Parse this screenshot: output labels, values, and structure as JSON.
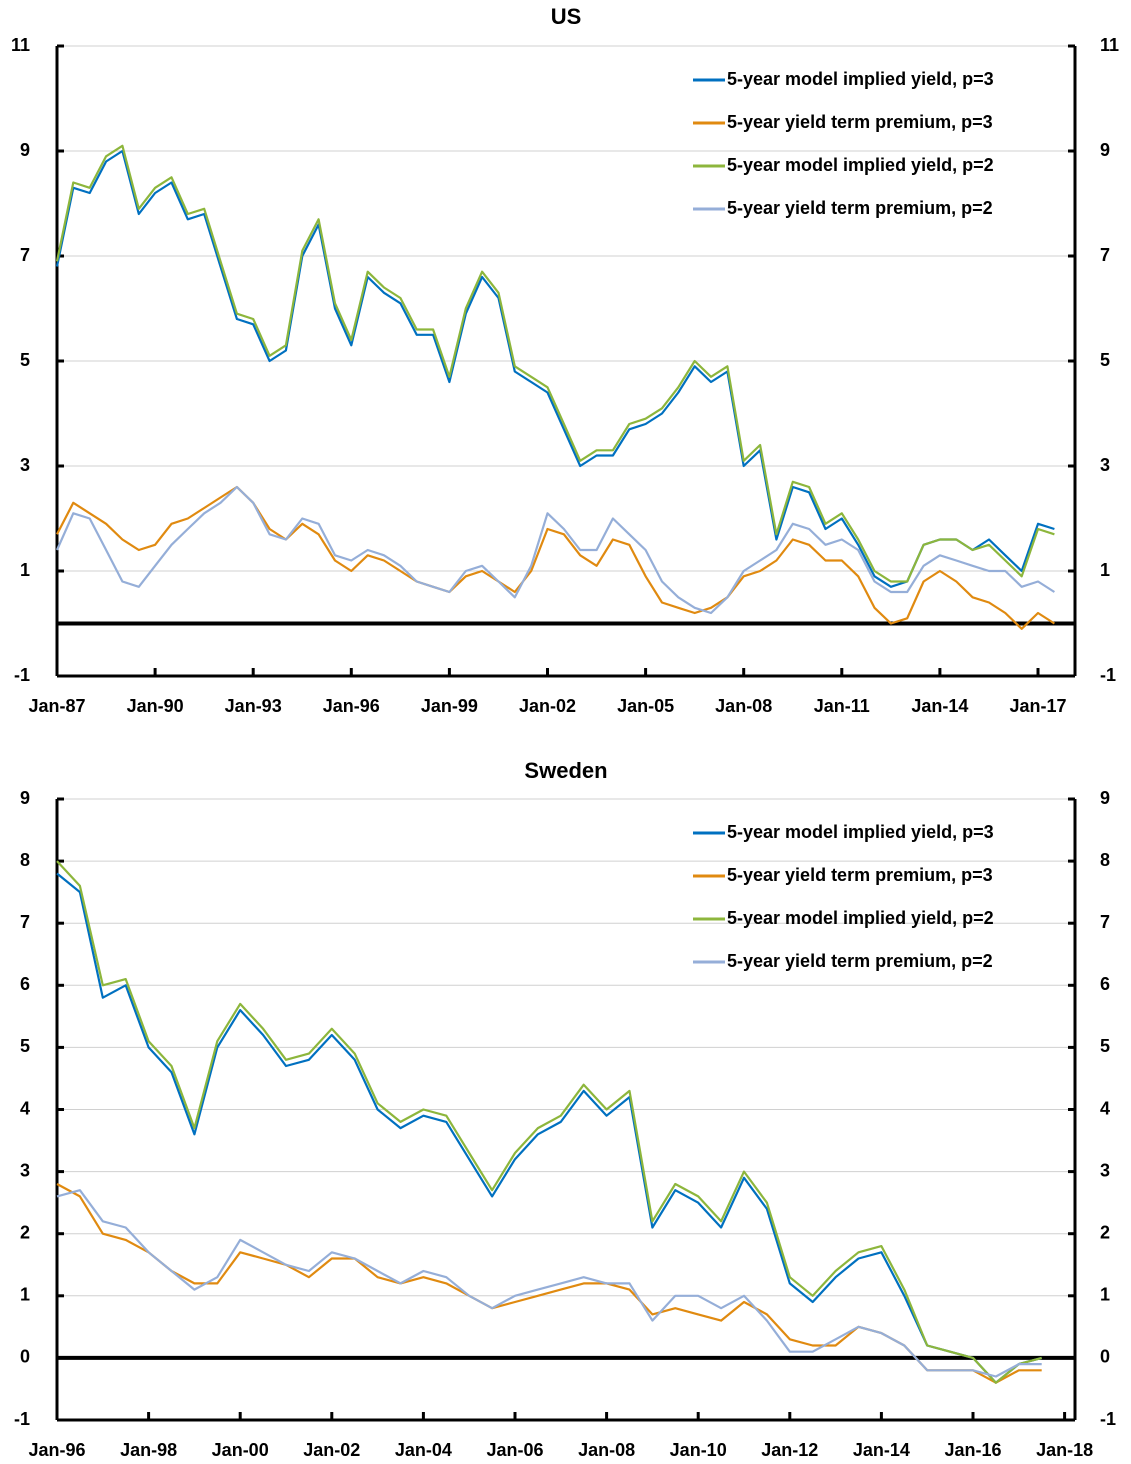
{
  "chart_data": [
    {
      "type": "line",
      "title": "US",
      "x": [
        "Jan-87",
        "Jul-87",
        "Jan-88",
        "Jul-88",
        "Jan-89",
        "Jul-89",
        "Jan-90",
        "Jul-90",
        "Jan-91",
        "Jul-91",
        "Jan-92",
        "Jul-92",
        "Jan-93",
        "Jul-93",
        "Jan-94",
        "Jul-94",
        "Jan-95",
        "Jul-95",
        "Jan-96",
        "Jul-96",
        "Jan-97",
        "Jul-97",
        "Jan-98",
        "Jul-98",
        "Jan-99",
        "Jul-99",
        "Jan-00",
        "Jul-00",
        "Jan-01",
        "Jul-01",
        "Jan-02",
        "Jul-02",
        "Jan-03",
        "Jul-03",
        "Jan-04",
        "Jul-04",
        "Jan-05",
        "Jul-05",
        "Jan-06",
        "Jul-06",
        "Jan-07",
        "Jul-07",
        "Jan-08",
        "Jul-08",
        "Jan-09",
        "Jul-09",
        "Jan-10",
        "Jul-10",
        "Jan-11",
        "Jul-11",
        "Jan-12",
        "Jul-12",
        "Jan-13",
        "Jul-13",
        "Jan-14",
        "Jul-14",
        "Jan-15",
        "Jul-15",
        "Jan-16",
        "Jul-16",
        "Jan-17",
        "Jul-17"
      ],
      "series": [
        {
          "name": "5-year model implied yield, p=3",
          "color": "#0070c0",
          "values": [
            6.8,
            8.3,
            8.2,
            8.8,
            9.0,
            7.8,
            8.2,
            8.4,
            7.7,
            7.8,
            6.8,
            5.8,
            5.7,
            5.0,
            5.2,
            7.0,
            7.6,
            6.0,
            5.3,
            6.6,
            6.3,
            6.1,
            5.5,
            5.5,
            4.6,
            5.9,
            6.6,
            6.2,
            4.8,
            4.6,
            4.4,
            3.7,
            3.0,
            3.2,
            3.2,
            3.7,
            3.8,
            4.0,
            4.4,
            4.9,
            4.6,
            4.8,
            3.0,
            3.3,
            1.6,
            2.6,
            2.5,
            1.8,
            2.0,
            1.5,
            0.9,
            0.7,
            0.8,
            1.5,
            1.6,
            1.6,
            1.4,
            1.6,
            1.3,
            1.0,
            1.9,
            1.8
          ]
        },
        {
          "name": "5-year yield term premium, p=3",
          "color": "#e08a10",
          "values": [
            1.7,
            2.3,
            2.1,
            1.9,
            1.6,
            1.4,
            1.5,
            1.9,
            2.0,
            2.2,
            2.4,
            2.6,
            2.3,
            1.8,
            1.6,
            1.9,
            1.7,
            1.2,
            1.0,
            1.3,
            1.2,
            1.0,
            0.8,
            0.7,
            0.6,
            0.9,
            1.0,
            0.8,
            0.6,
            1.0,
            1.8,
            1.7,
            1.3,
            1.1,
            1.6,
            1.5,
            0.9,
            0.4,
            0.3,
            0.2,
            0.3,
            0.5,
            0.9,
            1.0,
            1.2,
            1.6,
            1.5,
            1.2,
            1.2,
            0.9,
            0.3,
            0.0,
            0.1,
            0.8,
            1.0,
            0.8,
            0.5,
            0.4,
            0.2,
            -0.1,
            0.2,
            0.0
          ]
        },
        {
          "name": "5-year model implied yield, p=2",
          "color": "#8db63c",
          "values": [
            6.9,
            8.4,
            8.3,
            8.9,
            9.1,
            7.9,
            8.3,
            8.5,
            7.8,
            7.9,
            6.9,
            5.9,
            5.8,
            5.1,
            5.3,
            7.1,
            7.7,
            6.1,
            5.4,
            6.7,
            6.4,
            6.2,
            5.6,
            5.6,
            4.7,
            6.0,
            6.7,
            6.3,
            4.9,
            4.7,
            4.5,
            3.8,
            3.1,
            3.3,
            3.3,
            3.8,
            3.9,
            4.1,
            4.5,
            5.0,
            4.7,
            4.9,
            3.1,
            3.4,
            1.7,
            2.7,
            2.6,
            1.9,
            2.1,
            1.6,
            1.0,
            0.8,
            0.8,
            1.5,
            1.6,
            1.6,
            1.4,
            1.5,
            1.2,
            0.9,
            1.8,
            1.7
          ]
        },
        {
          "name": "5-year yield term premium, p=2",
          "color": "#95aed8",
          "values": [
            1.4,
            2.1,
            2.0,
            1.4,
            0.8,
            0.7,
            1.1,
            1.5,
            1.8,
            2.1,
            2.3,
            2.6,
            2.3,
            1.7,
            1.6,
            2.0,
            1.9,
            1.3,
            1.2,
            1.4,
            1.3,
            1.1,
            0.8,
            0.7,
            0.6,
            1.0,
            1.1,
            0.8,
            0.5,
            1.1,
            2.1,
            1.8,
            1.4,
            1.4,
            2.0,
            1.7,
            1.4,
            0.8,
            0.5,
            0.3,
            0.2,
            0.5,
            1.0,
            1.2,
            1.4,
            1.9,
            1.8,
            1.5,
            1.6,
            1.4,
            0.8,
            0.6,
            0.6,
            1.1,
            1.3,
            1.2,
            1.1,
            1.0,
            1.0,
            0.7,
            0.8,
            0.6
          ]
        }
      ],
      "xticks": [
        "Jan-87",
        "Jan-90",
        "Jan-93",
        "Jan-96",
        "Jan-99",
        "Jan-02",
        "Jan-05",
        "Jan-08",
        "Jan-11",
        "Jan-14",
        "Jan-17"
      ],
      "ylim": [
        -1,
        11
      ],
      "yticks": [
        -1,
        1,
        3,
        5,
        7,
        9,
        11
      ],
      "grid": true,
      "legend": "upper right"
    },
    {
      "type": "line",
      "title": "Sweden",
      "x": [
        "Jan-96",
        "Jul-96",
        "Jan-97",
        "Jul-97",
        "Jan-98",
        "Jul-98",
        "Jan-99",
        "Jul-99",
        "Jan-00",
        "Jul-00",
        "Jan-01",
        "Jul-01",
        "Jan-02",
        "Jul-02",
        "Jan-03",
        "Jul-03",
        "Jan-04",
        "Jul-04",
        "Jan-05",
        "Jul-05",
        "Jan-06",
        "Jul-06",
        "Jan-07",
        "Jul-07",
        "Jan-08",
        "Jul-08",
        "Jan-09",
        "Jul-09",
        "Jan-10",
        "Jul-10",
        "Jan-11",
        "Jul-11",
        "Jan-12",
        "Jul-12",
        "Jan-13",
        "Jul-13",
        "Jan-14",
        "Jul-14",
        "Jan-15",
        "Jul-15",
        "Jan-16",
        "Jul-16",
        "Jan-17",
        "Jul-17",
        "Jan-18"
      ],
      "series": [
        {
          "name": "5-year model implied yield, p=3",
          "color": "#0070c0",
          "values": [
            7.8,
            7.5,
            5.8,
            6.0,
            5.0,
            4.6,
            3.6,
            5.0,
            5.6,
            5.2,
            4.7,
            4.8,
            5.2,
            4.8,
            4.0,
            3.7,
            3.9,
            3.8,
            3.2,
            2.6,
            3.2,
            3.6,
            3.8,
            4.3,
            3.9,
            4.2,
            2.1,
            2.7,
            2.5,
            2.1,
            2.9,
            2.4,
            1.2,
            0.9,
            1.3,
            1.6,
            1.7,
            1.0,
            0.2,
            0.1,
            0.0,
            -0.4,
            -0.1,
            0.0,
            null
          ]
        },
        {
          "name": "5-year yield term premium, p=3",
          "color": "#e08a10",
          "values": [
            2.8,
            2.6,
            2.0,
            1.9,
            1.7,
            1.4,
            1.2,
            1.2,
            1.7,
            1.6,
            1.5,
            1.3,
            1.6,
            1.6,
            1.3,
            1.2,
            1.3,
            1.2,
            1.0,
            0.8,
            0.9,
            1.0,
            1.1,
            1.2,
            1.2,
            1.1,
            0.7,
            0.8,
            0.7,
            0.6,
            0.9,
            0.7,
            0.3,
            0.2,
            0.2,
            0.5,
            0.4,
            0.2,
            -0.2,
            -0.2,
            -0.2,
            -0.4,
            -0.2,
            -0.2,
            null
          ]
        },
        {
          "name": "5-year model implied yield, p=2",
          "color": "#8db63c",
          "values": [
            8.0,
            7.6,
            6.0,
            6.1,
            5.1,
            4.7,
            3.7,
            5.1,
            5.7,
            5.3,
            4.8,
            4.9,
            5.3,
            4.9,
            4.1,
            3.8,
            4.0,
            3.9,
            3.3,
            2.7,
            3.3,
            3.7,
            3.9,
            4.4,
            4.0,
            4.3,
            2.2,
            2.8,
            2.6,
            2.2,
            3.0,
            2.5,
            1.3,
            1.0,
            1.4,
            1.7,
            1.8,
            1.1,
            0.2,
            0.1,
            0.0,
            -0.4,
            -0.1,
            0.0,
            null
          ]
        },
        {
          "name": "5-year yield term premium, p=2",
          "color": "#95aed8",
          "values": [
            2.6,
            2.7,
            2.2,
            2.1,
            1.7,
            1.4,
            1.1,
            1.3,
            1.9,
            1.7,
            1.5,
            1.4,
            1.7,
            1.6,
            1.4,
            1.2,
            1.4,
            1.3,
            1.0,
            0.8,
            1.0,
            1.1,
            1.2,
            1.3,
            1.2,
            1.2,
            0.6,
            1.0,
            1.0,
            0.8,
            1.0,
            0.6,
            0.1,
            0.1,
            0.3,
            0.5,
            0.4,
            0.2,
            -0.2,
            -0.2,
            -0.2,
            -0.3,
            -0.1,
            -0.1,
            null
          ]
        }
      ],
      "xticks": [
        "Jan-96",
        "Jan-98",
        "Jan-00",
        "Jan-02",
        "Jan-04",
        "Jan-06",
        "Jan-08",
        "Jan-10",
        "Jan-12",
        "Jan-14",
        "Jan-16",
        "Jan-18"
      ],
      "ylim": [
        -1,
        9
      ],
      "yticks": [
        -1,
        0,
        1,
        2,
        3,
        4,
        5,
        6,
        7,
        8,
        9
      ],
      "grid": true,
      "legend": "upper right"
    }
  ]
}
